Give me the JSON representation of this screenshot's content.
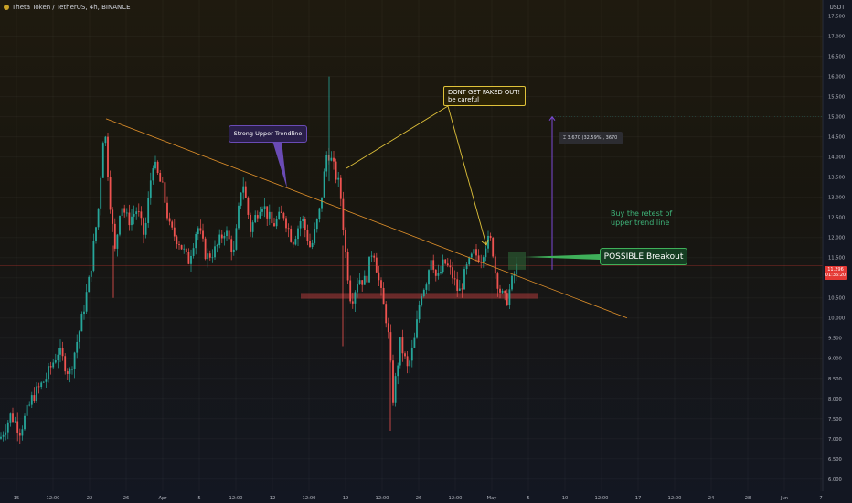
{
  "header": {
    "title": "Theta Token / TetherUS, 4h, BINANCE",
    "currency": "USDT"
  },
  "price_tag": {
    "value": "11.296",
    "countdown": "01:36:20"
  },
  "annotations": {
    "upper_trendline": "Strong Upper Trendline",
    "fakeout_line1": "DONT GET FAKED OUT!",
    "fakeout_line2": "be careful",
    "measure": "3.670 (32.59%), 3670",
    "buy_retest_line1": "Buy the retest of",
    "buy_retest_line2": "upper trend line",
    "breakout": "POSSIBLE Breakout"
  },
  "colors": {
    "up": "#26a69a",
    "down": "#ef5350",
    "trendline": "#e0902a",
    "accent": "#e0c23a"
  },
  "chart_data": {
    "type": "candlestick",
    "title": "Theta Token / TetherUS, 4h, BINANCE",
    "y_ticks": [
      "17.500",
      "17.000",
      "16.500",
      "16.000",
      "15.500",
      "15.000",
      "14.500",
      "14.000",
      "13.500",
      "13.000",
      "12.500",
      "12.000",
      "11.500",
      "11.000",
      "10.500",
      "10.000",
      "9.500",
      "9.000",
      "8.500",
      "8.000",
      "7.500",
      "7.000",
      "6.500",
      "6.000"
    ],
    "x_ticks": [
      "15",
      "12:00",
      "22",
      "26",
      "Apr",
      "5",
      "12:00",
      "12",
      "12:00",
      "19",
      "12:00",
      "26",
      "12:00",
      "May",
      "5",
      "10",
      "12:00",
      "17",
      "12:00",
      "24",
      "28",
      "Jun",
      "7"
    ],
    "ylim": [
      5.7,
      17.9
    ],
    "last_price": 11.296,
    "anchors": [
      [
        0,
        7.0
      ],
      [
        12,
        7.6
      ],
      [
        22,
        7.2
      ],
      [
        35,
        8.0
      ],
      [
        50,
        8.5
      ],
      [
        64,
        9.2
      ],
      [
        76,
        8.6
      ],
      [
        88,
        9.8
      ],
      [
        98,
        11.0
      ],
      [
        108,
        12.8
      ],
      [
        114,
        14.9
      ],
      [
        120,
        13.0
      ],
      [
        126,
        11.6
      ],
      [
        132,
        12.9
      ],
      [
        140,
        12.4
      ],
      [
        150,
        12.7
      ],
      [
        158,
        12.0
      ],
      [
        167,
        13.9
      ],
      [
        178,
        13.2
      ],
      [
        186,
        12.2
      ],
      [
        196,
        11.9
      ],
      [
        206,
        11.4
      ],
      [
        216,
        12.3
      ],
      [
        226,
        11.5
      ],
      [
        236,
        11.7
      ],
      [
        246,
        12.2
      ],
      [
        256,
        11.6
      ],
      [
        265,
        13.5
      ],
      [
        274,
        12.2
      ],
      [
        286,
        12.9
      ],
      [
        298,
        12.3
      ],
      [
        310,
        12.6
      ],
      [
        320,
        11.9
      ],
      [
        330,
        12.5
      ],
      [
        340,
        11.7
      ],
      [
        350,
        12.7
      ],
      [
        358,
        14.2
      ],
      [
        364,
        13.8
      ],
      [
        372,
        13.2
      ],
      [
        378,
        11.6
      ],
      [
        384,
        10.4
      ],
      [
        392,
        11.0
      ],
      [
        400,
        10.9
      ],
      [
        408,
        11.8
      ],
      [
        416,
        10.7
      ],
      [
        424,
        9.8
      ],
      [
        430,
        8.0
      ],
      [
        438,
        9.4
      ],
      [
        446,
        8.7
      ],
      [
        454,
        9.5
      ],
      [
        460,
        10.6
      ],
      [
        466,
        10.9
      ],
      [
        472,
        11.6
      ],
      [
        478,
        10.9
      ],
      [
        486,
        11.4
      ],
      [
        494,
        11.1
      ],
      [
        502,
        10.6
      ],
      [
        510,
        11.2
      ],
      [
        518,
        11.6
      ],
      [
        526,
        11.5
      ],
      [
        532,
        11.9
      ],
      [
        538,
        11.9
      ],
      [
        542,
        11.1
      ],
      [
        548,
        10.6
      ],
      [
        554,
        10.4
      ],
      [
        560,
        10.9
      ],
      [
        566,
        11.3
      ]
    ],
    "trendline": [
      [
        116,
        14.95
      ],
      [
        686,
        10.0
      ]
    ],
    "support_zone": [
      10.62,
      10.48
    ],
    "projection_target": 15.0
  }
}
